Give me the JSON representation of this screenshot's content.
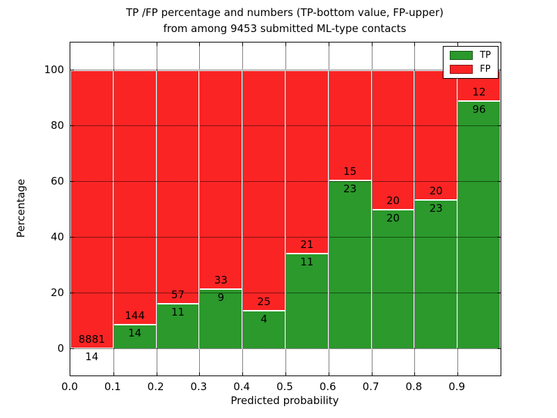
{
  "figure": {
    "title_line1": "TP /FP percentage and numbers (TP-bottom value, FP-upper)",
    "title_line2": "from among 9453 submitted ML-type contacts"
  },
  "chart_data": {
    "type": "bar",
    "subtype": "stacked-percentage",
    "title": "TP /FP percentage and numbers (TP-bottom value, FP-upper)\nfrom among 9453 submitted ML-type contacts",
    "xlabel": "Predicted probability",
    "ylabel": "Percentage",
    "total_contacts": 9453,
    "bins": [
      "0.0-0.1",
      "0.1-0.2",
      "0.2-0.3",
      "0.3-0.4",
      "0.4-0.5",
      "0.5-0.6",
      "0.6-0.7",
      "0.7-0.8",
      "0.8-0.9",
      "0.9-1.0"
    ],
    "x_tick_labels": [
      "0.0",
      "0.1",
      "0.2",
      "0.3",
      "0.4",
      "0.5",
      "0.6",
      "0.7",
      "0.8",
      "0.9"
    ],
    "y_ticks": [
      0,
      20,
      40,
      60,
      80,
      100
    ],
    "y_tick_labels": [
      "0",
      "20",
      "40",
      "60",
      "80",
      "100"
    ],
    "xlim": [
      0.0,
      1.0
    ],
    "ylim": [
      -9.5,
      110
    ],
    "grid": true,
    "series": [
      {
        "name": "TP",
        "color": "#2b992b",
        "values": [
          14,
          14,
          11,
          9,
          4,
          11,
          23,
          20,
          23,
          96
        ]
      },
      {
        "name": "FP",
        "color": "#fb2424",
        "values": [
          8881,
          144,
          57,
          33,
          25,
          21,
          15,
          20,
          20,
          12
        ]
      }
    ],
    "tp_percent": [
      0.16,
      8.86,
      16.18,
      21.43,
      13.79,
      34.38,
      60.53,
      50.0,
      53.49,
      88.89
    ],
    "legend": {
      "position": "upper right",
      "entries": [
        "TP",
        "FP"
      ]
    },
    "colors": {
      "tp": "#2b992b",
      "fp": "#fb2424",
      "grid": "#000000",
      "background": "#ffffff"
    }
  }
}
